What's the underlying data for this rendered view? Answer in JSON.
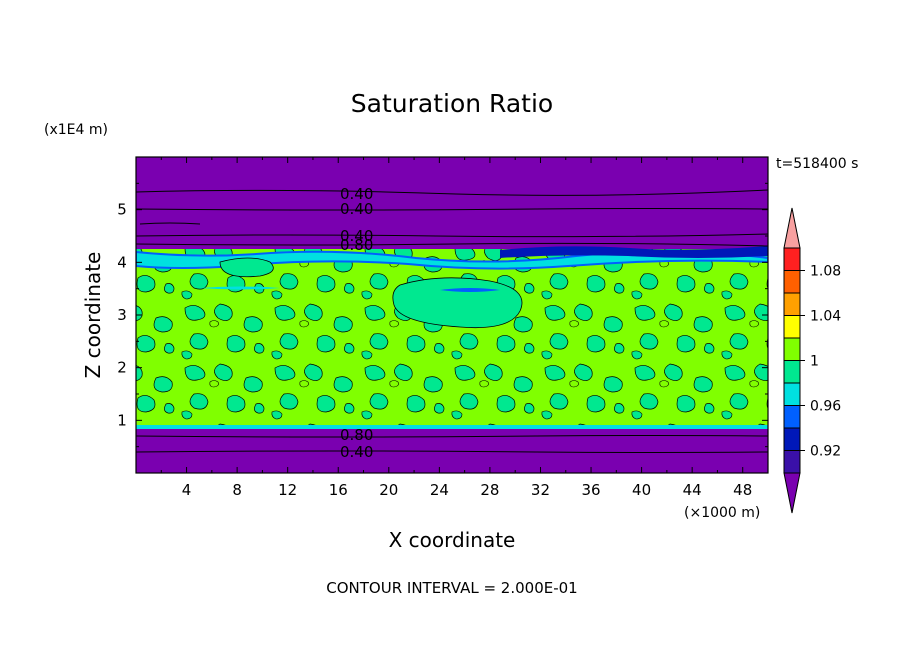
{
  "chart_data": {
    "type": "heatmap",
    "title": "Saturation Ratio",
    "xlabel": "X coordinate",
    "ylabel": "Z coordinate",
    "x_unit": "(×1000 m)",
    "y_unit": "(x1E4 m)",
    "time_label": "t=518400 s",
    "footer": "CONTOUR INTERVAL = 2.000E-01",
    "xlim": [
      0,
      50
    ],
    "ylim": [
      0,
      6
    ],
    "x_ticks": [
      "4",
      "8",
      "12",
      "16",
      "20",
      "24",
      "28",
      "32",
      "36",
      "40",
      "44",
      "48"
    ],
    "y_ticks": [
      "1",
      "2",
      "3",
      "4",
      "5"
    ],
    "contour_labels": [
      "0.40",
      "0.40",
      "0.40",
      "0.80",
      "0.80",
      "0.40"
    ],
    "colorbar": {
      "labels": [
        "1.08",
        "1.04",
        "1",
        "0.96",
        "0.92"
      ],
      "colors": [
        "#7a00b0",
        "#3a10a8",
        "#0018b8",
        "#0060ff",
        "#00e0e0",
        "#00e890",
        "#80ff00",
        "#ffff00",
        "#ffa000",
        "#ff6000",
        "#ff2020",
        "#f8a0a0"
      ]
    },
    "regions": [
      {
        "name": "upper-dry-layer",
        "z_range": [
          4.3,
          6.0
        ],
        "value": "<0.92"
      },
      {
        "name": "cloud-layer",
        "z_range": [
          0.85,
          4.3
        ],
        "value": "0.96-1.02"
      },
      {
        "name": "lower-dry-layer",
        "z_range": [
          0.0,
          0.85
        ],
        "value": "<0.92"
      }
    ]
  }
}
